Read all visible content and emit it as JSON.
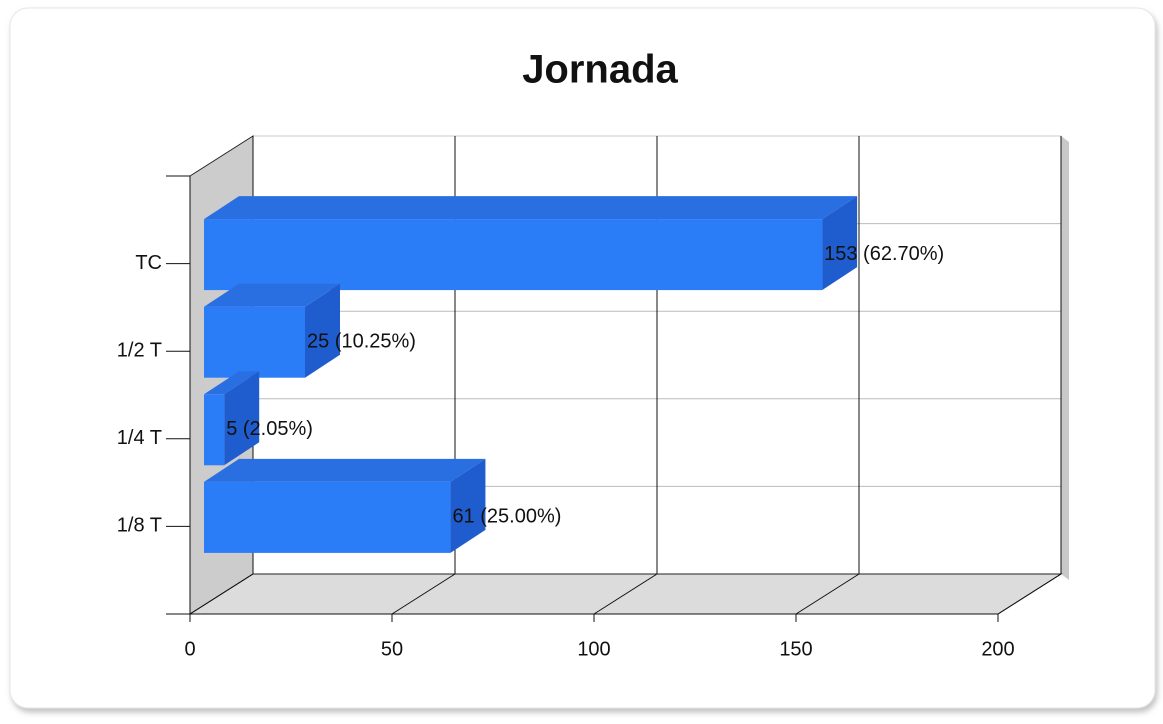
{
  "chart_data": {
    "type": "bar3d",
    "title": "Jornada",
    "categories": [
      "TC",
      "1/2 T",
      "1/4 T",
      "1/8 T"
    ],
    "values": [
      153,
      25,
      5,
      61
    ],
    "value_labels": [
      "153 (62.70%)",
      "25 (10.25%)",
      "5 (2.05%)",
      "61 (25.00%)"
    ],
    "color": "#2b7cf7",
    "xlim": [
      0,
      200
    ],
    "xticks": [
      0,
      50,
      100,
      150,
      200
    ],
    "grid": true
  }
}
